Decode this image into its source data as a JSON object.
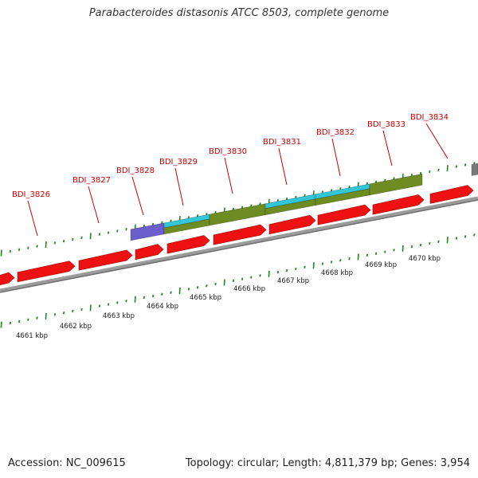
{
  "title": "Parabacteroides distasonis ATCC 8503, complete genome",
  "footer": {
    "accession": "Accession: NC_009615",
    "summary": "Topology: circular; Length: 4,811,379 bp; Genes: 3,954"
  },
  "colors": {
    "gene": "#ee1111",
    "gene_label": "#cc0000",
    "feature_olive": "#6e8c22",
    "feature_cyan": "#33c5d8",
    "feature_purple": "#6b5dcc",
    "feature_gray": "#7a7a7a",
    "tick": "#228822",
    "axis": "#8a8a8a"
  },
  "gene_labels": [
    "BDI_3826",
    "BDI_3827",
    "BDI_3828",
    "BDI_3829",
    "BDI_3830",
    "BDI_3831",
    "BDI_3832",
    "BDI_3833",
    "BDI_3834"
  ],
  "scale_labels": [
    "4661 kbp",
    "4662 kbp",
    "4663 kbp",
    "4664 kbp",
    "4665 kbp",
    "4666 kbp",
    "4667 kbp",
    "4668 kbp",
    "4669 kbp",
    "4670 kbp"
  ]
}
